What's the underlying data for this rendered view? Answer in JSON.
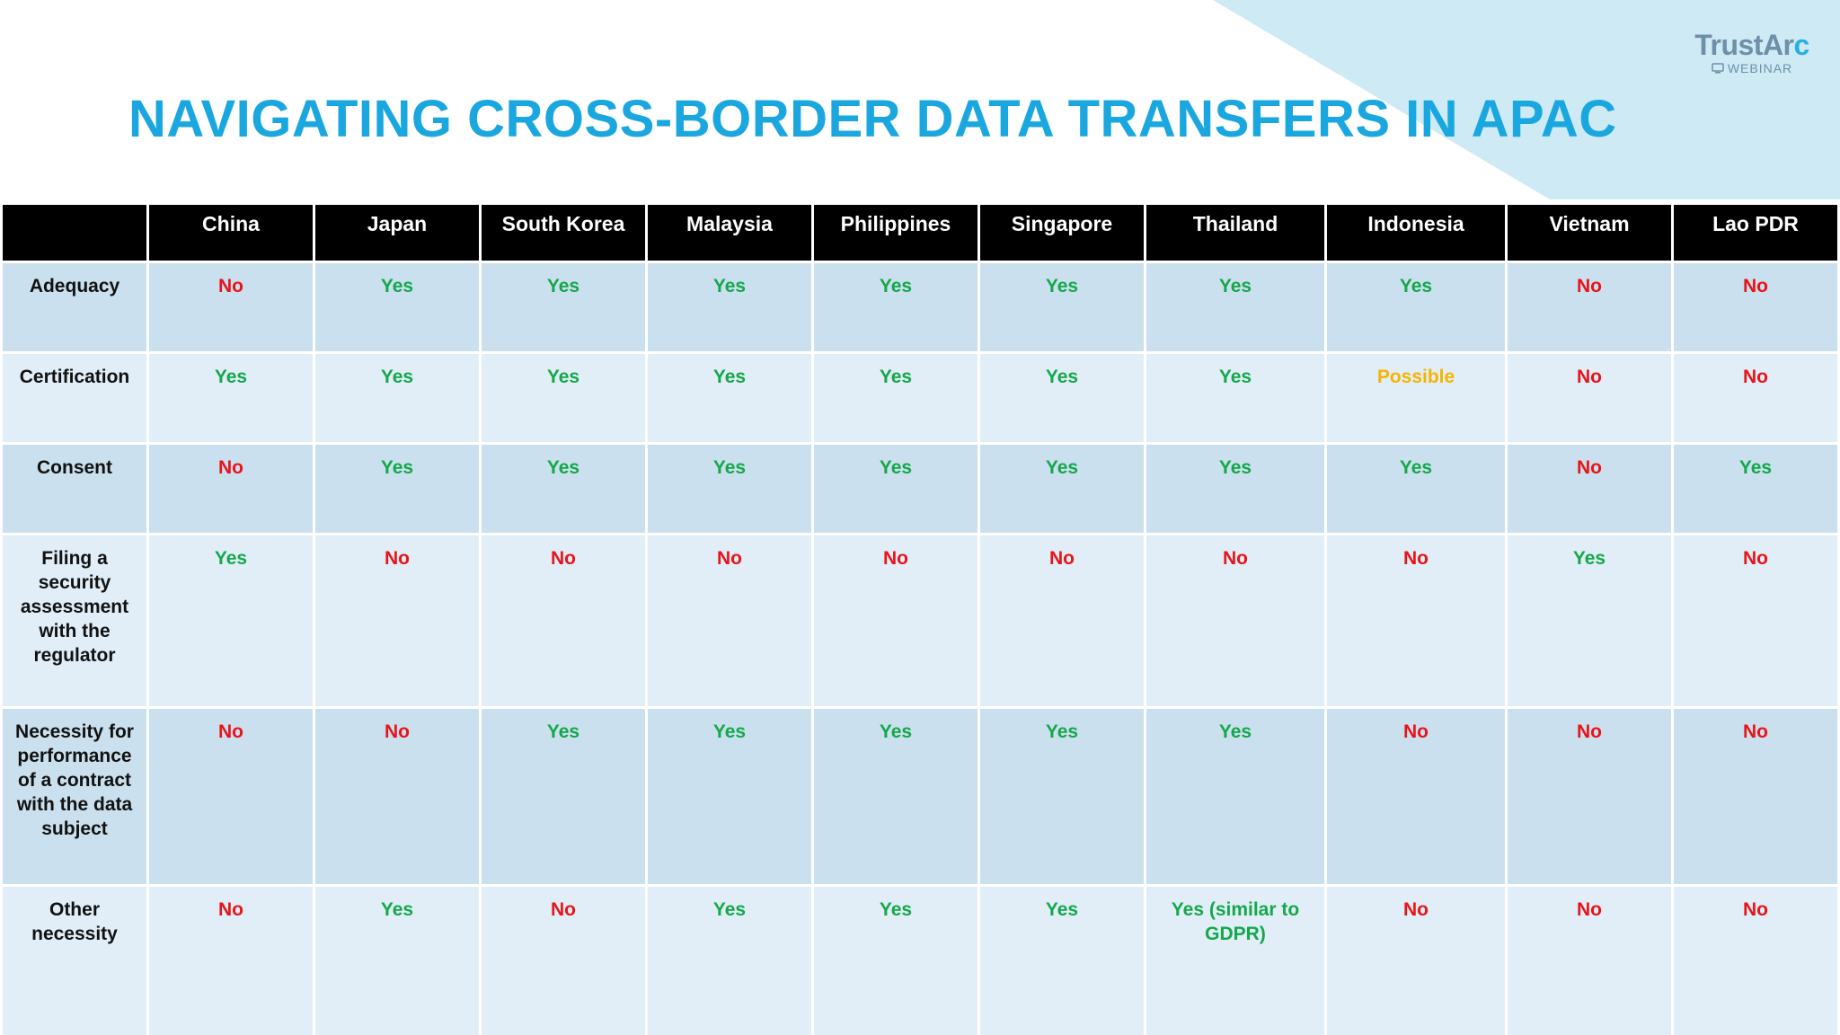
{
  "header": {
    "title": "NAVIGATING CROSS-BORDER DATA TRANSFERS IN APAC"
  },
  "logo": {
    "brand_main": "TrustAr",
    "brand_accent": "c",
    "subtitle": "WEBINAR"
  },
  "colors": {
    "title": "#1aa7df",
    "yes": "#14a84a",
    "no": "#e8141a",
    "possible": "#f5b400",
    "header_bg": "#000000",
    "row_dark": "#cbe0ee",
    "row_light": "#e2eef7",
    "triangle": "#cdeaf5"
  },
  "table": {
    "columns": [
      "China",
      "Japan",
      "South Korea",
      "Malaysia",
      "Philippines",
      "Singapore",
      "Thailand",
      "Indonesia",
      "Vietnam",
      "Lao PDR"
    ],
    "rows": [
      {
        "label": "Adequacy",
        "values": [
          "No",
          "Yes",
          "Yes",
          "Yes",
          "Yes",
          "Yes",
          "Yes",
          "Yes",
          "No",
          "No"
        ]
      },
      {
        "label": "Certification",
        "values": [
          "Yes",
          "Yes",
          "Yes",
          "Yes",
          "Yes",
          "Yes",
          "Yes",
          "Possible",
          "No",
          "No"
        ]
      },
      {
        "label": "Consent",
        "values": [
          "No",
          "Yes",
          "Yes",
          "Yes",
          "Yes",
          "Yes",
          "Yes",
          "Yes",
          "No",
          "Yes"
        ]
      },
      {
        "label": "Filing a security assessment with the regulator",
        "values": [
          "Yes",
          "No",
          "No",
          "No",
          "No",
          "No",
          "No",
          "No",
          "Yes",
          "No"
        ]
      },
      {
        "label": "Necessity for performance of a contract with the data subject",
        "values": [
          "No",
          "No",
          "Yes",
          "Yes",
          "Yes",
          "Yes",
          "Yes",
          "No",
          "No",
          "No"
        ]
      },
      {
        "label": "Other necessity",
        "values": [
          "No",
          "Yes",
          "No",
          "Yes",
          "Yes",
          "Yes",
          "Yes (similar to GDPR)",
          "No",
          "No",
          "No"
        ]
      }
    ]
  }
}
